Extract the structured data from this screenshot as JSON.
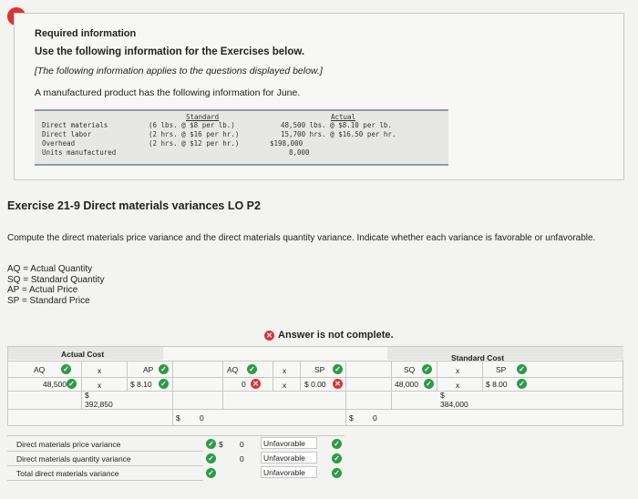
{
  "alert_icon": "!",
  "required_info": "Required information",
  "use_info": "Use the following information for the Exercises below.",
  "applies_note": "[The following information applies to the questions displayed below.]",
  "intro": "A manufactured product has the following information for June.",
  "info_table": {
    "col_standard": "Standard",
    "col_actual": "Actual",
    "rows": [
      {
        "label": "Direct materials",
        "standard": "(6 lbs. @ $8 per lb.)",
        "actual": "48,500 lbs. @ $8.10 per lb."
      },
      {
        "label": "Direct labor",
        "standard": "(2 hrs. @ $16 per hr.)",
        "actual": "15,700 hrs. @ $16.50 per hr."
      },
      {
        "label": "Overhead",
        "standard": "(2 hrs. @ $12 per hr.)",
        "actual": "$198,000"
      },
      {
        "label": "Units manufactured",
        "standard": "",
        "actual": "8,000"
      }
    ]
  },
  "exercise_title": "Exercise 21-9 Direct materials variances LO P2",
  "instructions": "Compute the direct materials price variance and the direct materials quantity variance. Indicate whether each variance is favorable or unfavorable.",
  "definitions": [
    "AQ = Actual Quantity",
    "SQ = Standard Quantity",
    "AP = Actual Price",
    "SP = Standard Price"
  ],
  "status": "Answer is not complete.",
  "grid": {
    "actual_cost_header": "Actual Cost",
    "standard_cost_header": "Standard Cost",
    "aq_label": "AQ",
    "ap_label": "AP",
    "sp_label": "SP",
    "sq_label": "SQ",
    "times": "x",
    "aq_value": "48,500",
    "ap_value": "$ 8.10",
    "actual_total_dollar": "$",
    "actual_total": "392,850",
    "mid_aq_value": "0",
    "mid_sp_value": "$ 0.00",
    "sq_value": "48,000",
    "sp_value": "$ 8.00",
    "std_total_dollar": "$",
    "std_total": "384,000",
    "variance_left_dollar": "$",
    "variance_left": "0",
    "variance_right_dollar": "$",
    "variance_right": "0"
  },
  "summary": [
    {
      "label": "Direct materials price variance",
      "dollar": "$",
      "value": "0",
      "outcome": "Unfavorable"
    },
    {
      "label": "Direct materials quantity variance",
      "dollar": "",
      "value": "0",
      "outcome": "Unfavorable"
    },
    {
      "label": "Total direct materials variance",
      "dollar": "",
      "value": "",
      "outcome": "Unfavorable"
    }
  ],
  "colors": {
    "correct": "#2e9b47",
    "incorrect": "#d33"
  }
}
